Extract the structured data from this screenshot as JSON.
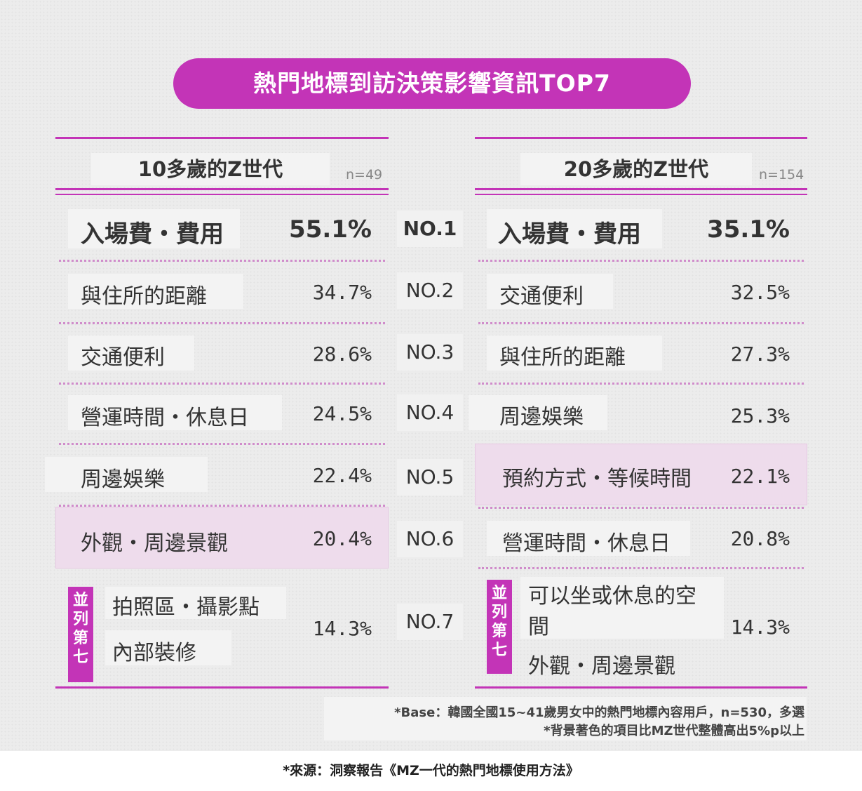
{
  "title": "熱門地標到訪決策影響資訊TOP7",
  "chart_data": {
    "type": "table",
    "ranks": [
      "NO.1",
      "NO.2",
      "NO.3",
      "NO.4",
      "NO.5",
      "NO.6",
      "NO.7"
    ],
    "groups": [
      {
        "name": "10多歲的Z世代",
        "n": "n=49",
        "rows": [
          {
            "items": [
              "入場費・費用"
            ],
            "value": "55.1%",
            "highlight": false
          },
          {
            "items": [
              "與住所的距離"
            ],
            "value": "34.7%",
            "highlight": false
          },
          {
            "items": [
              "交通便利"
            ],
            "value": "28.6%",
            "highlight": false
          },
          {
            "items": [
              "營運時間・休息日"
            ],
            "value": "24.5%",
            "highlight": false
          },
          {
            "items": [
              "周邊娛樂"
            ],
            "value": "22.4%",
            "highlight": false
          },
          {
            "items": [
              "外觀・周邊景觀"
            ],
            "value": "20.4%",
            "highlight": true
          },
          {
            "items": [
              "拍照區・攝影點",
              "內部裝修"
            ],
            "value": "14.3%",
            "highlight": false,
            "tag": "並列第七"
          }
        ]
      },
      {
        "name": "20多歲的Z世代",
        "n": "n=154",
        "rows": [
          {
            "items": [
              "入場費・費用"
            ],
            "value": "35.1%",
            "highlight": false
          },
          {
            "items": [
              "交通便利"
            ],
            "value": "32.5%",
            "highlight": false
          },
          {
            "items": [
              "與住所的距離"
            ],
            "value": "27.3%",
            "highlight": false
          },
          {
            "items": [
              "周邊娛樂"
            ],
            "value": "25.3%",
            "highlight": false
          },
          {
            "items": [
              "預約方式・等候時間"
            ],
            "value": "22.1%",
            "highlight": true
          },
          {
            "items": [
              "營運時間・休息日"
            ],
            "value": "20.8%",
            "highlight": false
          },
          {
            "items": [
              "可以坐或休息的空間",
              "外觀・周邊景觀"
            ],
            "value": "14.3%",
            "highlight": false,
            "tag": "並列第七"
          }
        ]
      }
    ]
  },
  "notes": [
    "*Base：韓國全國15~41歲男女中的熱門地標內容用戶，n=530，多選",
    "*背景著色的項目比MZ世代整體高出5%p以上"
  ],
  "source": "*來源：洞察報告《MZ一代的熱門地標使用方法》",
  "colors": {
    "accent": "#c334b7",
    "highlight_bg": "#eedcec",
    "dots": "#d08ccb"
  }
}
